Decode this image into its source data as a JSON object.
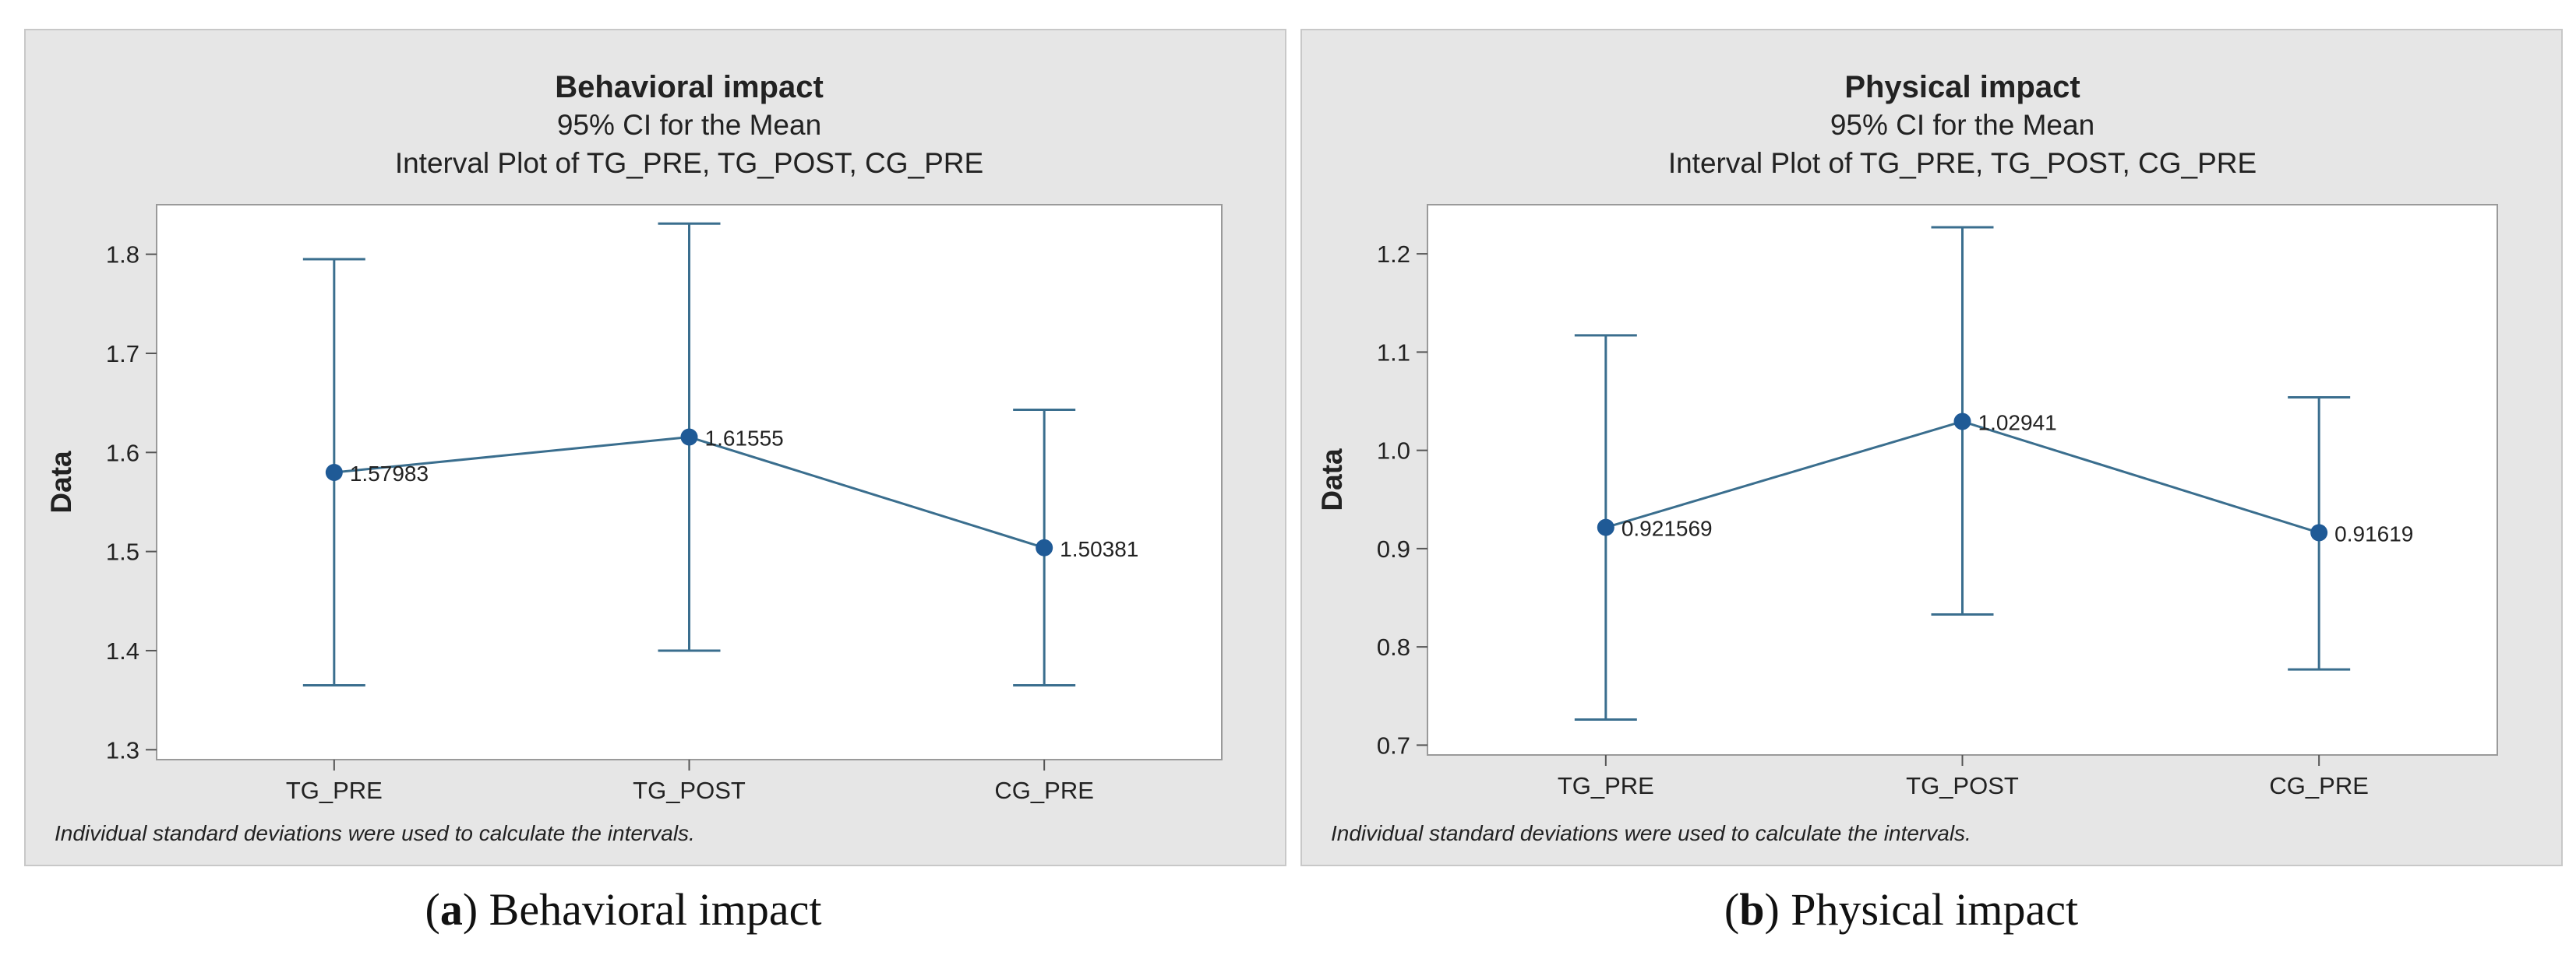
{
  "style": {
    "panel_background": "#e6e6e6",
    "panel_border": "#c8c8c8",
    "plot_background": "#ffffff",
    "plot_border": "#9a9a9a",
    "line_color": "#3a6e8e",
    "marker_color": "#1f5a96",
    "text_color": "#222222",
    "page_background": "#ffffff"
  },
  "chart_data": [
    {
      "type": "interval",
      "title": "Behavioral impact",
      "subtitle1": "95% CI for the Mean",
      "subtitle2": "Interval Plot of TG_PRE, TG_POST, CG_PRE",
      "xlabel": "",
      "ylabel": "Data",
      "categories": [
        "TG_PRE",
        "TG_POST",
        "CG_PRE"
      ],
      "means": [
        1.57983,
        1.61555,
        1.50381
      ],
      "mean_labels": [
        "1.57983",
        "1.61555",
        "1.50381"
      ],
      "ci_lower": [
        1.365,
        1.4,
        1.365
      ],
      "ci_upper": [
        1.795,
        1.831,
        1.643
      ],
      "ylim": [
        1.29,
        1.85
      ],
      "yticks": [
        1.3,
        1.4,
        1.5,
        1.6,
        1.7,
        1.8
      ],
      "ytick_labels": [
        "1.3",
        "1.4",
        "1.5",
        "1.6",
        "1.7",
        "1.8"
      ],
      "footnote": "Individual standard deviations were used to calculate the intervals.",
      "caption_letter": "a",
      "caption_text": "Behavioral impact"
    },
    {
      "type": "interval",
      "title": "Physical impact",
      "subtitle1": "95% CI for the Mean",
      "subtitle2": "Interval Plot of TG_PRE, TG_POST, CG_PRE",
      "xlabel": "",
      "ylabel": "Data",
      "categories": [
        "TG_PRE",
        "TG_POST",
        "CG_PRE"
      ],
      "means": [
        0.921569,
        1.02941,
        0.91619
      ],
      "mean_labels": [
        "0.921569",
        "1.02941",
        "0.91619"
      ],
      "ci_lower": [
        0.726,
        0.833,
        0.777
      ],
      "ci_upper": [
        1.117,
        1.227,
        1.054
      ],
      "ylim": [
        0.69,
        1.25
      ],
      "yticks": [
        0.7,
        0.8,
        0.9,
        1.0,
        1.1,
        1.2
      ],
      "ytick_labels": [
        "0.7",
        "0.8",
        "0.9",
        "1.0",
        "1.1",
        "1.2"
      ],
      "footnote": "Individual standard deviations were used to calculate the intervals.",
      "caption_letter": "b",
      "caption_text": "Physical impact"
    }
  ]
}
